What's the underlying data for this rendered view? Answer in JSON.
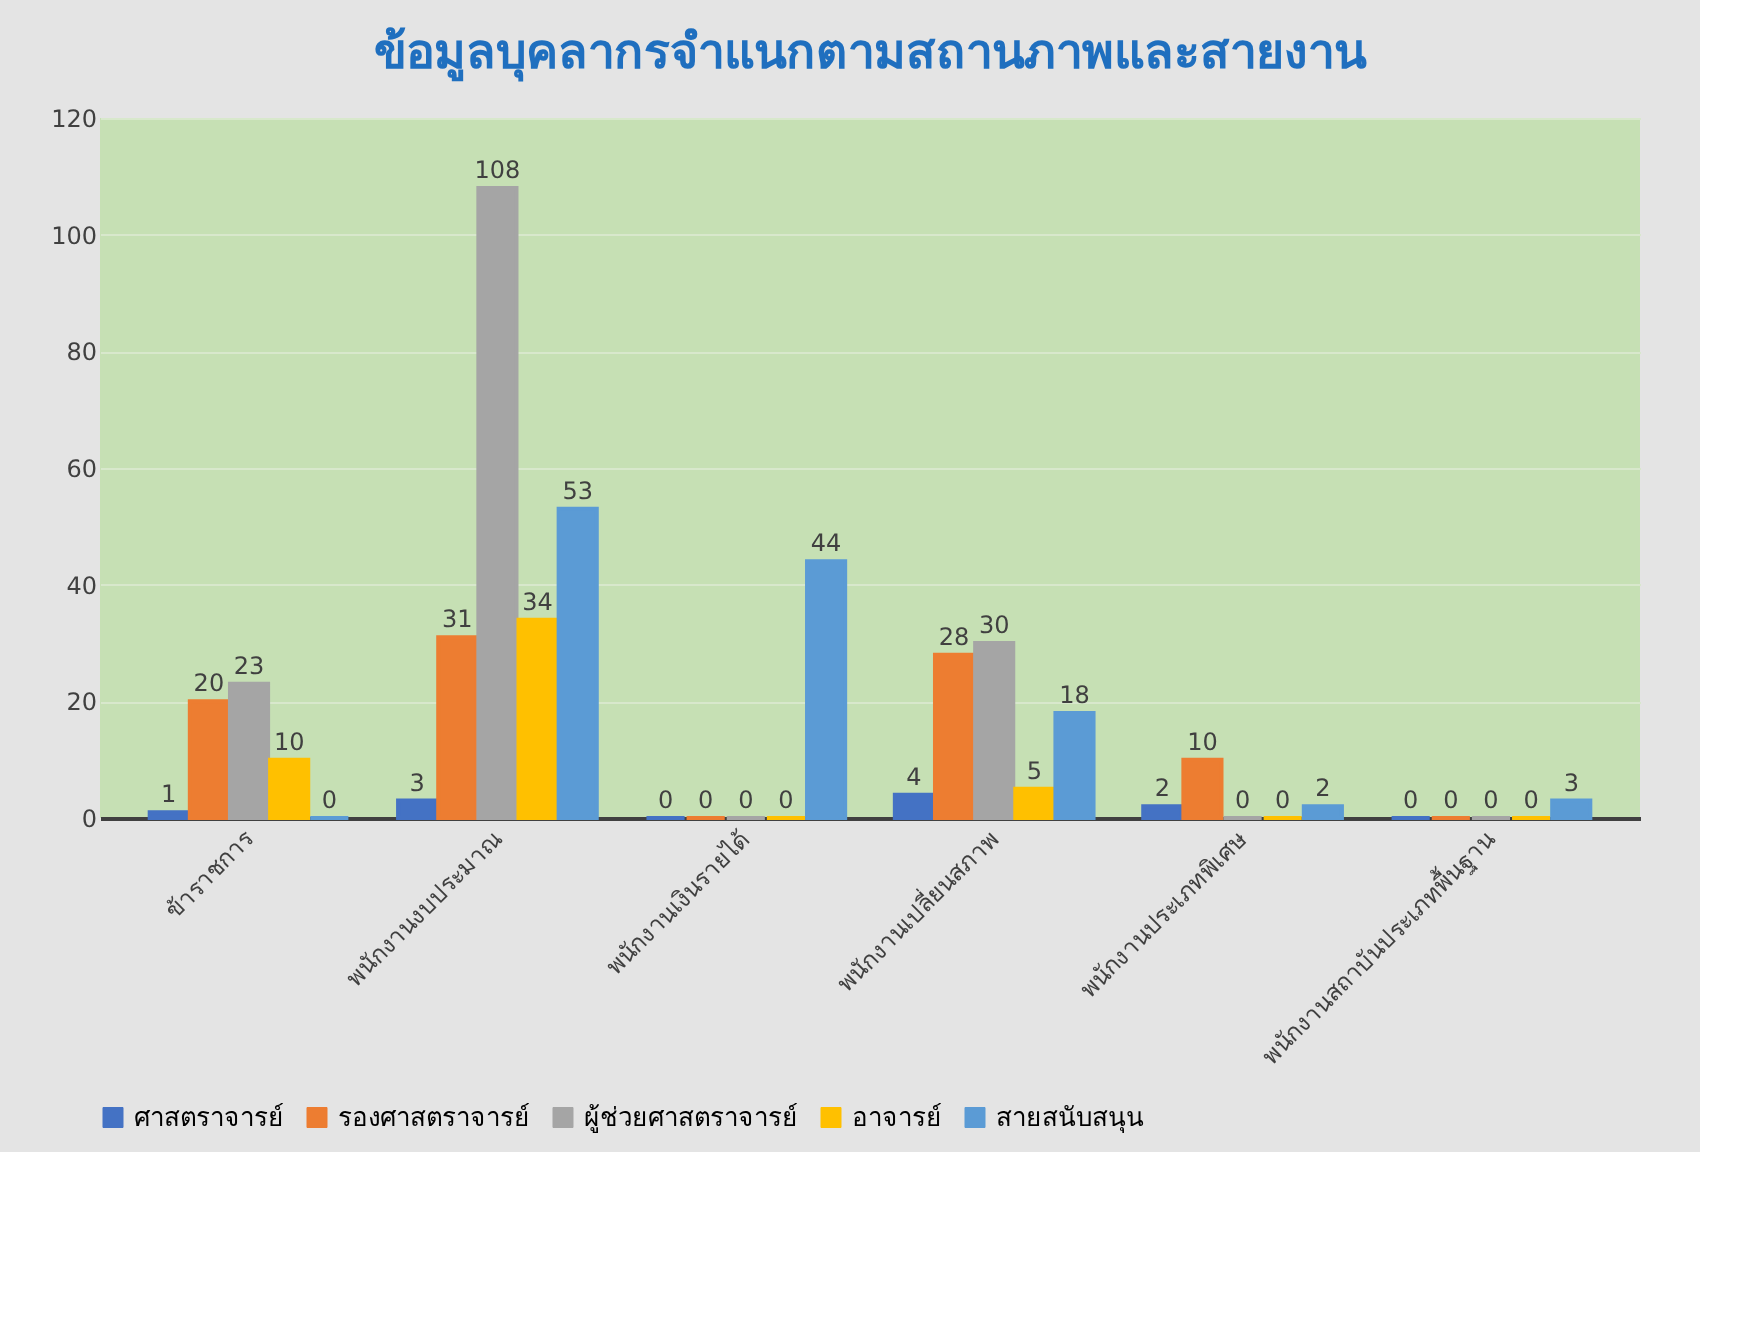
{
  "chart_data": {
    "type": "bar",
    "title": "ข้อมูลบุคลากรจำแนกตามสถานภาพและสายงาน",
    "categories": [
      "ข้าราชการ",
      "พนักงานงบประมาณ",
      "พนักงานเงินรายได้",
      "พนักงานเปลี่ยนสภาพ",
      "พนักงานประเภทพิเศษ",
      "พนักงานสถาบันประเภทพื้นฐาน"
    ],
    "series": [
      {
        "name": "ศาสตราจารย์",
        "color": "#4472c4",
        "values": [
          1,
          3,
          0,
          4,
          2,
          0
        ]
      },
      {
        "name": "รองศาสตราจารย์",
        "color": "#ed7d31",
        "values": [
          20,
          31,
          0,
          28,
          10,
          0
        ]
      },
      {
        "name": "ผู้ช่วยศาสตราจารย์",
        "color": "#a5a5a5",
        "values": [
          23,
          108,
          0,
          30,
          0,
          0
        ]
      },
      {
        "name": "อาจารย์",
        "color": "#ffc000",
        "values": [
          10,
          34,
          0,
          5,
          0,
          0
        ]
      },
      {
        "name": "สายสนับสนุน",
        "color": "#5b9bd5",
        "values": [
          0,
          53,
          44,
          18,
          2,
          3
        ]
      }
    ],
    "ylim": [
      0,
      120
    ],
    "yticks": [
      0,
      20,
      40,
      60,
      80,
      100,
      120
    ],
    "grid": "y",
    "legend": "bottom",
    "data_labels": true
  }
}
